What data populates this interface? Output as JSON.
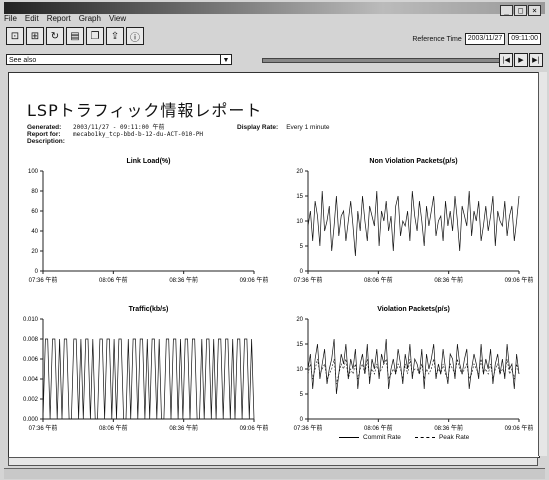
{
  "window": {
    "menus": [
      "File",
      "Edit",
      "Report",
      "Graph",
      "View"
    ],
    "reference_time_label": "Reference Time",
    "reference_date": "2003/11/27",
    "reference_clock": "09:11:00",
    "see_also_label": "See also",
    "nav": [
      "|◀",
      "▶",
      "▶|"
    ]
  },
  "report": {
    "title": "LSPトラフィック情報レポート",
    "generated_label": "Generated:",
    "generated_value": "2003/11/27 - 09:11:00 午前",
    "report_for_label": "Report for:",
    "report_for_value": "mecabo1ky_tcp-bbd-b-12-du-ACT-010-PH",
    "description_label": "Description:",
    "display_rate_label": "Display Rate:",
    "display_rate_value": "Every 1 minute"
  },
  "x_ticks": [
    "07:36 午前",
    "08:06 午前",
    "08:36 午前",
    "09:06 午前"
  ],
  "legend": {
    "commit": "Commit Rate",
    "peak": "Peak Rate"
  },
  "colors": {
    "line": "#111111",
    "frame": "#222222"
  },
  "chart_data": [
    {
      "type": "line",
      "title": "Link Load(%)",
      "ylim": [
        0,
        100
      ],
      "yticks": [
        "0",
        "20",
        "40",
        "60",
        "80",
        "100"
      ],
      "series": []
    },
    {
      "type": "line",
      "title": "Non Violation Packets(p/s)",
      "ylim": [
        0,
        20
      ],
      "yticks": [
        "0",
        "5",
        "10",
        "15",
        "20"
      ],
      "series": [
        {
          "values": [
            9,
            12,
            6,
            14,
            11,
            5,
            16,
            8,
            10,
            13,
            4,
            9,
            15,
            7,
            11,
            12,
            6,
            10,
            14,
            9,
            3,
            12,
            8,
            15,
            10,
            6,
            13,
            11,
            9,
            16,
            5,
            12,
            10,
            14,
            8,
            11,
            4,
            13,
            15,
            7,
            10,
            9,
            12,
            6,
            16,
            11,
            8,
            14,
            10,
            5,
            13,
            9,
            12,
            15,
            7,
            10,
            11,
            6,
            14,
            9,
            12,
            8,
            15,
            10,
            4,
            13,
            11,
            9,
            16,
            7,
            12,
            10,
            14,
            6,
            9,
            13,
            8,
            11,
            15,
            5,
            12,
            10,
            9,
            14,
            7,
            11,
            13,
            6,
            10,
            15
          ]
        }
      ]
    },
    {
      "type": "line",
      "title": "Traffic(kb/s)",
      "ylim": [
        0,
        0.01
      ],
      "yticks": [
        "0.000",
        "0.002",
        "0.004",
        "0.006",
        "0.008",
        "0.010"
      ],
      "series": [
        {
          "values": [
            0,
            0.008,
            0.008,
            0,
            0.008,
            0.008,
            0,
            0.008,
            0,
            0.008,
            0.008,
            0,
            0,
            0.008,
            0.008,
            0,
            0.008,
            0,
            0.008,
            0.008,
            0,
            0.008,
            0,
            0,
            0.008,
            0.008,
            0,
            0.008,
            0.008,
            0,
            0.008,
            0,
            0.008,
            0.008,
            0,
            0,
            0.008,
            0,
            0.008,
            0.008,
            0,
            0.008,
            0.008,
            0,
            0.008,
            0,
            0.008,
            0.008,
            0,
            0.008,
            0,
            0,
            0.008,
            0.008,
            0,
            0.008,
            0.008,
            0,
            0.008,
            0,
            0.008,
            0.008,
            0,
            0.008,
            0.008,
            0,
            0,
            0.008,
            0,
            0.008,
            0.008,
            0,
            0.008,
            0,
            0.008,
            0.008,
            0,
            0.008,
            0.008,
            0,
            0.008,
            0,
            0.008,
            0.008,
            0,
            0.008,
            0.008,
            0,
            0.008,
            0
          ]
        }
      ]
    },
    {
      "type": "line",
      "title": "Violation Packets(p/s)",
      "ylim": [
        0,
        20
      ],
      "yticks": [
        "0",
        "5",
        "10",
        "15",
        "20"
      ],
      "series": [
        {
          "name": "Commit Rate",
          "values": [
            10,
            13,
            6,
            12,
            15,
            8,
            11,
            14,
            7,
            10,
            12,
            16,
            5,
            9,
            13,
            11,
            15,
            8,
            12,
            10,
            14,
            6,
            11,
            13,
            9,
            15,
            7,
            12,
            10,
            14,
            8,
            13,
            11,
            16,
            6,
            10,
            12,
            9,
            14,
            11,
            7,
            13,
            10,
            15,
            8,
            12,
            11,
            9,
            14,
            6,
            13,
            10,
            12,
            15,
            8,
            11,
            9,
            14,
            10,
            7,
            13,
            12,
            8,
            15,
            11,
            9,
            12,
            14,
            6,
            10,
            13,
            11,
            8,
            15,
            9,
            12,
            10,
            14,
            7,
            11,
            13,
            9,
            12,
            8,
            15,
            10,
            11,
            6,
            13,
            9
          ]
        },
        {
          "name": "Peak Rate",
          "values": [
            9,
            11,
            8,
            10,
            12,
            9,
            10,
            11,
            8,
            9,
            10,
            12,
            7,
            9,
            11,
            10,
            12,
            8,
            10,
            9,
            11,
            8,
            10,
            11,
            9,
            12,
            8,
            10,
            9,
            11,
            9,
            10,
            11,
            12,
            8,
            9,
            10,
            9,
            11,
            10,
            8,
            11,
            9,
            12,
            9,
            10,
            10,
            9,
            11,
            8,
            10,
            9,
            10,
            12,
            9,
            10,
            9,
            11,
            9,
            8,
            11,
            10,
            9,
            12,
            10,
            9,
            10,
            11,
            8,
            9,
            11,
            10,
            9,
            12,
            9,
            10,
            9,
            11,
            8,
            10,
            11,
            9,
            10,
            9,
            12,
            9,
            10,
            8,
            11,
            9
          ]
        }
      ]
    }
  ]
}
